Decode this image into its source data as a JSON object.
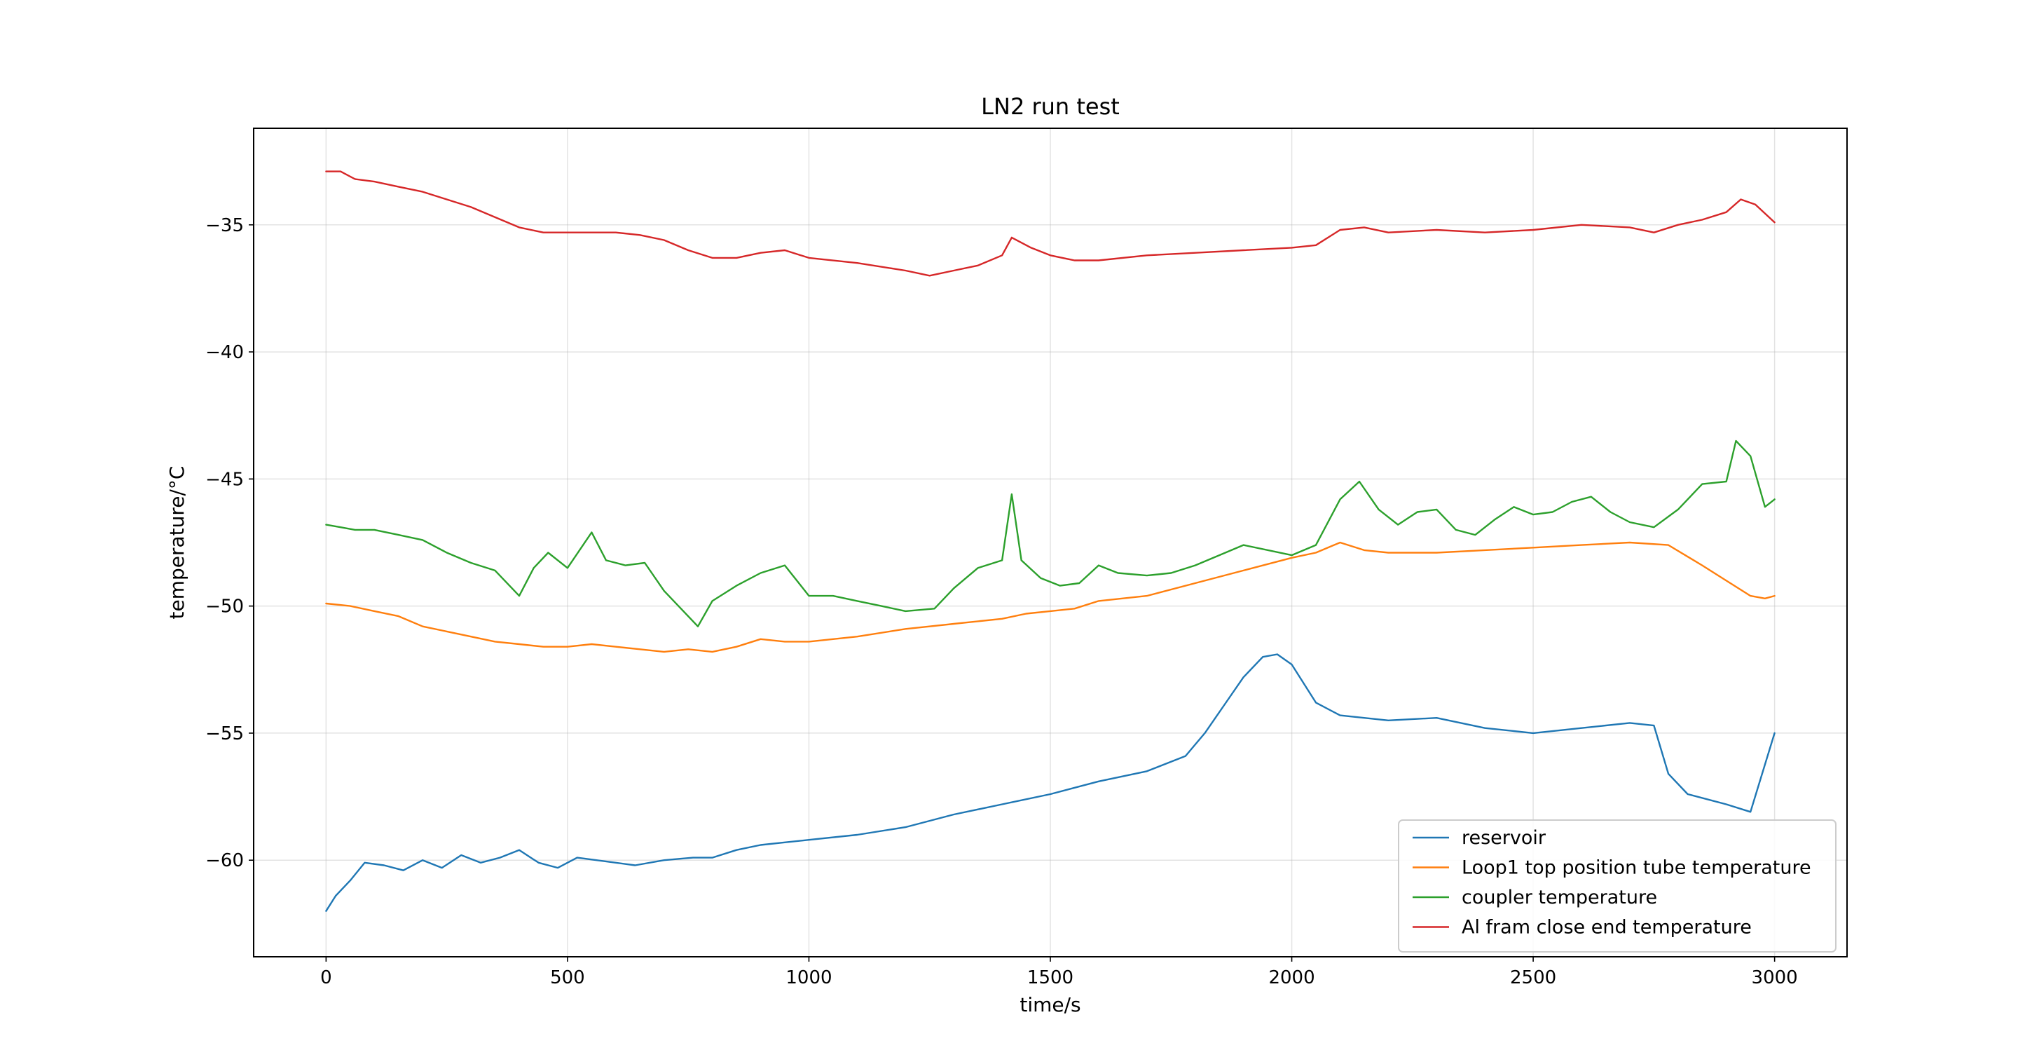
{
  "chart_data": {
    "type": "line",
    "title": "LN2 run test",
    "xlabel": "time/s",
    "ylabel": "temperature/°C",
    "xlim": [
      -150,
      3150
    ],
    "ylim": [
      -63.8,
      -31.2
    ],
    "xticks": [
      0,
      500,
      1000,
      1500,
      2000,
      2500,
      3000
    ],
    "yticks": [
      -60,
      -55,
      -50,
      -45,
      -40,
      -35
    ],
    "grid": true,
    "legend_position": "lower-right",
    "series": [
      {
        "name": "reservoir",
        "color": "#1f77b4",
        "x": [
          0,
          20,
          50,
          80,
          120,
          160,
          200,
          240,
          280,
          320,
          360,
          400,
          440,
          480,
          520,
          560,
          600,
          640,
          700,
          760,
          800,
          850,
          900,
          950,
          1000,
          1100,
          1200,
          1300,
          1400,
          1500,
          1600,
          1700,
          1780,
          1820,
          1860,
          1900,
          1940,
          1970,
          2000,
          2050,
          2100,
          2200,
          2300,
          2400,
          2500,
          2600,
          2700,
          2750,
          2780,
          2820,
          2900,
          2950,
          3000
        ],
        "y": [
          -62.0,
          -61.4,
          -60.8,
          -60.1,
          -60.2,
          -60.4,
          -60.0,
          -60.3,
          -59.8,
          -60.1,
          -59.9,
          -59.6,
          -60.1,
          -60.3,
          -59.9,
          -60.0,
          -60.1,
          -60.2,
          -60.0,
          -59.9,
          -59.9,
          -59.6,
          -59.4,
          -59.3,
          -59.2,
          -59.0,
          -58.7,
          -58.2,
          -57.8,
          -57.4,
          -56.9,
          -56.5,
          -55.9,
          -55.0,
          -53.9,
          -52.8,
          -52.0,
          -51.9,
          -52.3,
          -53.8,
          -54.3,
          -54.5,
          -54.4,
          -54.8,
          -55.0,
          -54.8,
          -54.6,
          -54.7,
          -56.6,
          -57.4,
          -57.8,
          -58.1,
          -55.0
        ]
      },
      {
        "name": "Loop1 top position tube temperature",
        "color": "#ff7f0e",
        "x": [
          0,
          50,
          100,
          150,
          200,
          250,
          300,
          350,
          400,
          450,
          500,
          550,
          600,
          650,
          700,
          750,
          800,
          850,
          900,
          950,
          1000,
          1100,
          1200,
          1300,
          1400,
          1450,
          1500,
          1550,
          1600,
          1700,
          1800,
          1900,
          2000,
          2050,
          2100,
          2150,
          2200,
          2300,
          2400,
          2500,
          2600,
          2700,
          2780,
          2850,
          2900,
          2950,
          2980,
          3000
        ],
        "y": [
          -49.9,
          -50.0,
          -50.2,
          -50.4,
          -50.8,
          -51.0,
          -51.2,
          -51.4,
          -51.5,
          -51.6,
          -51.6,
          -51.5,
          -51.6,
          -51.7,
          -51.8,
          -51.7,
          -51.8,
          -51.6,
          -51.3,
          -51.4,
          -51.4,
          -51.2,
          -50.9,
          -50.7,
          -50.5,
          -50.3,
          -50.2,
          -50.1,
          -49.8,
          -49.6,
          -49.1,
          -48.6,
          -48.1,
          -47.9,
          -47.5,
          -47.8,
          -47.9,
          -47.9,
          -47.8,
          -47.7,
          -47.6,
          -47.5,
          -47.6,
          -48.4,
          -49.0,
          -49.6,
          -49.7,
          -49.6
        ]
      },
      {
        "name": "coupler temperature",
        "color": "#2ca02c",
        "x": [
          0,
          30,
          60,
          100,
          150,
          200,
          250,
          300,
          350,
          400,
          430,
          460,
          500,
          550,
          580,
          620,
          660,
          700,
          740,
          770,
          800,
          850,
          900,
          950,
          1000,
          1050,
          1100,
          1150,
          1200,
          1260,
          1300,
          1350,
          1400,
          1420,
          1440,
          1480,
          1520,
          1560,
          1600,
          1640,
          1700,
          1750,
          1800,
          1850,
          1900,
          2000,
          2050,
          2100,
          2140,
          2180,
          2220,
          2260,
          2300,
          2340,
          2380,
          2420,
          2460,
          2500,
          2540,
          2580,
          2620,
          2660,
          2700,
          2750,
          2800,
          2850,
          2900,
          2920,
          2950,
          2980,
          3000
        ],
        "y": [
          -46.8,
          -46.9,
          -47.0,
          -47.0,
          -47.2,
          -47.4,
          -47.9,
          -48.3,
          -48.6,
          -49.6,
          -48.5,
          -47.9,
          -48.5,
          -47.1,
          -48.2,
          -48.4,
          -48.3,
          -49.4,
          -50.2,
          -50.8,
          -49.8,
          -49.2,
          -48.7,
          -48.4,
          -49.6,
          -49.6,
          -49.8,
          -50.0,
          -50.2,
          -50.1,
          -49.3,
          -48.5,
          -48.2,
          -45.6,
          -48.2,
          -48.9,
          -49.2,
          -49.1,
          -48.4,
          -48.7,
          -48.8,
          -48.7,
          -48.4,
          -48.0,
          -47.6,
          -48.0,
          -47.6,
          -45.8,
          -45.1,
          -46.2,
          -46.8,
          -46.3,
          -46.2,
          -47.0,
          -47.2,
          -46.6,
          -46.1,
          -46.4,
          -46.3,
          -45.9,
          -45.7,
          -46.3,
          -46.7,
          -46.9,
          -46.2,
          -45.2,
          -45.1,
          -43.5,
          -44.1,
          -46.1,
          -45.8
        ]
      },
      {
        "name": "Al fram close end temperature",
        "color": "#d62728",
        "x": [
          0,
          30,
          60,
          100,
          150,
          200,
          250,
          300,
          350,
          400,
          450,
          500,
          550,
          600,
          650,
          700,
          750,
          800,
          850,
          900,
          950,
          1000,
          1100,
          1200,
          1250,
          1300,
          1350,
          1400,
          1420,
          1460,
          1500,
          1550,
          1600,
          1700,
          1800,
          1900,
          2000,
          2050,
          2100,
          2150,
          2200,
          2300,
          2400,
          2500,
          2600,
          2700,
          2750,
          2800,
          2850,
          2900,
          2930,
          2960,
          3000
        ],
        "y": [
          -32.9,
          -32.9,
          -33.2,
          -33.3,
          -33.5,
          -33.7,
          -34.0,
          -34.3,
          -34.7,
          -35.1,
          -35.3,
          -35.3,
          -35.3,
          -35.3,
          -35.4,
          -35.6,
          -36.0,
          -36.3,
          -36.3,
          -36.1,
          -36.0,
          -36.3,
          -36.5,
          -36.8,
          -37.0,
          -36.8,
          -36.6,
          -36.2,
          -35.5,
          -35.9,
          -36.2,
          -36.4,
          -36.4,
          -36.2,
          -36.1,
          -36.0,
          -35.9,
          -35.8,
          -35.2,
          -35.1,
          -35.3,
          -35.2,
          -35.3,
          -35.2,
          -35.0,
          -35.1,
          -35.3,
          -35.0,
          -34.8,
          -34.5,
          -34.0,
          -34.2,
          -34.9
        ]
      }
    ]
  }
}
